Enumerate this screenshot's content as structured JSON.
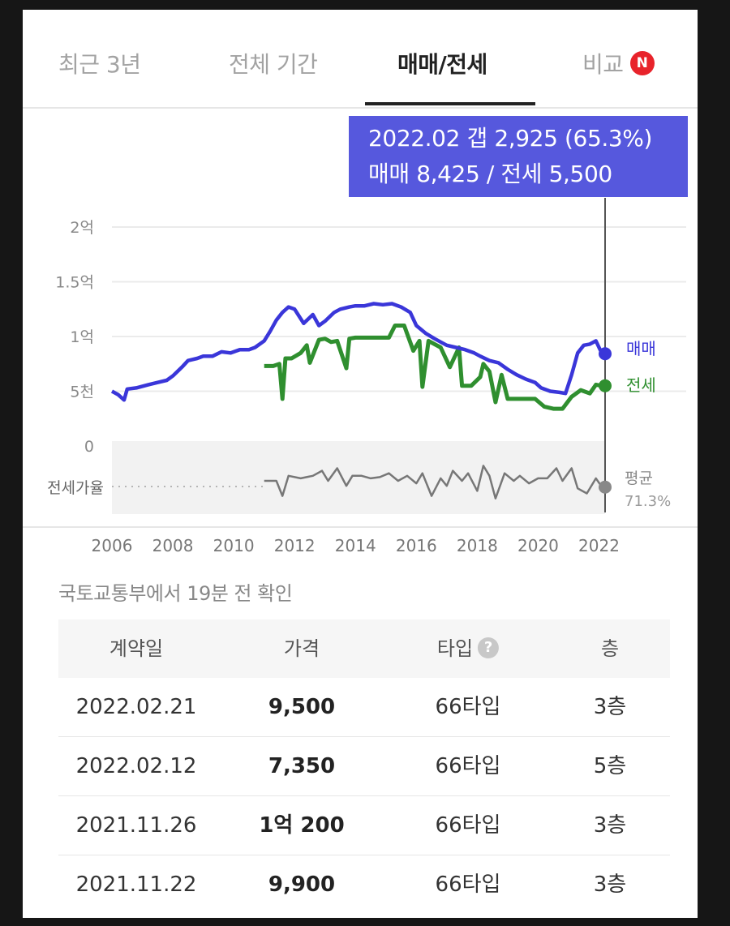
{
  "tabs": [
    {
      "label": "최근 3년",
      "active": false
    },
    {
      "label": "전체 기간",
      "active": false
    },
    {
      "label": "매매/전세",
      "active": true
    },
    {
      "label": "비교",
      "active": false,
      "badge": "N"
    }
  ],
  "tooltip": {
    "line1": "2022.02  갭 2,925 (65.3%)",
    "line2": "매매 8,425 / 전세 5,500"
  },
  "chart_data": {
    "type": "line",
    "y_ticks": [
      "2억",
      "1.5억",
      "1억",
      "5천",
      "0"
    ],
    "y_tick_values": [
      20000,
      15000,
      10000,
      5000,
      0
    ],
    "ylim": [
      0,
      20000
    ],
    "x_ticks": [
      "2006",
      "2008",
      "2010",
      "2012",
      "2014",
      "2016",
      "2018",
      "2020",
      "2022"
    ],
    "xlim": [
      2006,
      2022.2
    ],
    "ratio_label": "전세가율",
    "ratio_avg_label": "평균",
    "ratio_avg_value": "71.3%",
    "series": [
      {
        "name": "매매",
        "color": "#3a36d9",
        "x": [
          2006.0,
          2006.2,
          2006.4,
          2006.5,
          2006.8,
          2007.2,
          2007.5,
          2007.8,
          2008.0,
          2008.3,
          2008.5,
          2008.8,
          2009.0,
          2009.3,
          2009.6,
          2009.9,
          2010.2,
          2010.5,
          2010.7,
          2011.0,
          2011.2,
          2011.4,
          2011.6,
          2011.8,
          2012.0,
          2012.3,
          2012.6,
          2012.8,
          2013.0,
          2013.3,
          2013.5,
          2013.8,
          2014.0,
          2014.3,
          2014.6,
          2014.9,
          2015.2,
          2015.5,
          2015.8,
          2016.0,
          2016.3,
          2016.6,
          2016.8,
          2017.0,
          2017.3,
          2017.6,
          2017.9,
          2018.1,
          2018.4,
          2018.7,
          2019.0,
          2019.3,
          2019.6,
          2019.9,
          2020.1,
          2020.4,
          2020.7,
          2020.9,
          2021.1,
          2021.3,
          2021.5,
          2021.7,
          2021.9,
          2022.1
        ],
        "values": [
          5000,
          4700,
          4200,
          5200,
          5300,
          5600,
          5800,
          6000,
          6400,
          7200,
          7800,
          8000,
          8200,
          8200,
          8600,
          8500,
          8800,
          8800,
          9000,
          9600,
          10500,
          11500,
          12200,
          12700,
          12500,
          11200,
          12000,
          11000,
          11400,
          12200,
          12500,
          12700,
          12800,
          12800,
          13000,
          12900,
          13000,
          12700,
          12200,
          11000,
          10300,
          9800,
          9500,
          9200,
          9000,
          8800,
          8500,
          8200,
          7800,
          7600,
          7000,
          6500,
          6100,
          5800,
          5300,
          5000,
          4900,
          4800,
          6500,
          8500,
          9200,
          9300,
          9600,
          8425
        ]
      },
      {
        "name": "전세",
        "color": "#2f8f2f",
        "x": [
          2011.0,
          2011.3,
          2011.5,
          2011.6,
          2011.7,
          2011.9,
          2012.2,
          2012.4,
          2012.5,
          2012.8,
          2013.0,
          2013.2,
          2013.4,
          2013.7,
          2013.8,
          2014.0,
          2014.3,
          2014.6,
          2014.9,
          2015.1,
          2015.3,
          2015.6,
          2015.9,
          2016.1,
          2016.2,
          2016.4,
          2016.8,
          2017.1,
          2017.4,
          2017.5,
          2017.8,
          2018.1,
          2018.2,
          2018.4,
          2018.6,
          2018.8,
          2019.0,
          2019.3,
          2019.6,
          2019.9,
          2020.2,
          2020.5,
          2020.8,
          2021.1,
          2021.4,
          2021.7,
          2021.9,
          2022.1
        ],
        "values": [
          7300,
          7300,
          7500,
          4300,
          8000,
          8000,
          8500,
          9200,
          7600,
          9700,
          9800,
          9500,
          9600,
          7100,
          9800,
          9900,
          9900,
          9900,
          9900,
          9900,
          11000,
          11000,
          8700,
          9600,
          5400,
          9600,
          9000,
          7200,
          9000,
          5500,
          5500,
          6300,
          7500,
          6800,
          4000,
          6500,
          4300,
          4300,
          4300,
          4300,
          3600,
          3400,
          3400,
          4500,
          5100,
          4800,
          5600,
          5500
        ]
      },
      {
        "name": "전세가율",
        "color": "#777777",
        "x": [
          2011.0,
          2011.4,
          2011.6,
          2011.8,
          2012.2,
          2012.6,
          2012.9,
          2013.1,
          2013.4,
          2013.7,
          2013.9,
          2014.2,
          2014.5,
          2014.8,
          2015.1,
          2015.4,
          2015.7,
          2016.0,
          2016.2,
          2016.5,
          2016.8,
          2017.0,
          2017.2,
          2017.5,
          2017.7,
          2018.0,
          2018.2,
          2018.4,
          2018.6,
          2018.9,
          2019.2,
          2019.4,
          2019.7,
          2020.0,
          2020.3,
          2020.6,
          2020.8,
          2021.1,
          2021.3,
          2021.6,
          2021.9,
          2022.1
        ],
        "values": [
          70,
          70,
          58,
          74,
          72,
          74,
          78,
          70,
          80,
          66,
          74,
          74,
          72,
          73,
          76,
          70,
          74,
          68,
          76,
          58,
          72,
          66,
          78,
          70,
          76,
          62,
          82,
          74,
          56,
          76,
          70,
          74,
          68,
          72,
          72,
          80,
          70,
          80,
          64,
          60,
          72,
          65
        ]
      }
    ]
  }
}
